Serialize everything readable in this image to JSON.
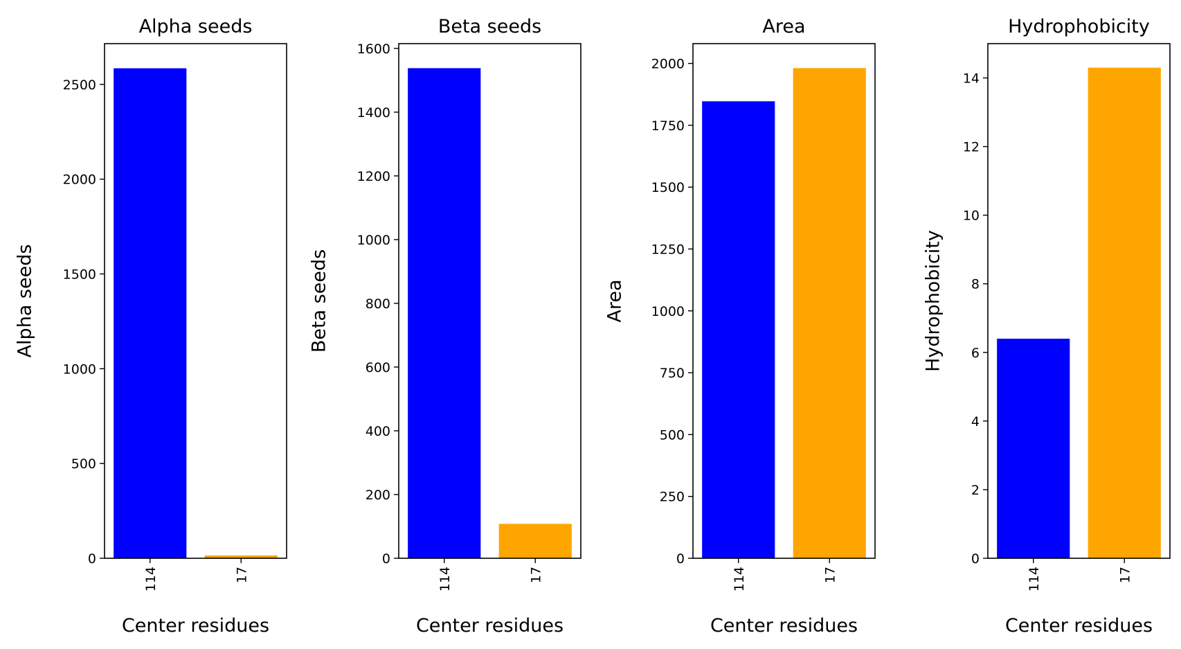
{
  "chart_data": [
    {
      "type": "bar",
      "title": "Alpha seeds",
      "xlabel": "Center residues",
      "ylabel": "Alpha seeds",
      "categories": [
        "114",
        "17"
      ],
      "values": [
        2585,
        15
      ],
      "bar_colors": [
        "#0000ff",
        "#ffa500"
      ],
      "ylim": [
        0,
        2715
      ],
      "yticks": [
        0,
        500,
        1000,
        1500,
        2000,
        2500
      ],
      "grid": false
    },
    {
      "type": "bar",
      "title": "Beta seeds",
      "xlabel": "Center residues",
      "ylabel": "Beta seeds",
      "categories": [
        "114",
        "17"
      ],
      "values": [
        1538,
        108
      ],
      "bar_colors": [
        "#0000ff",
        "#ffa500"
      ],
      "ylim": [
        0,
        1615
      ],
      "yticks": [
        0,
        200,
        400,
        600,
        800,
        1000,
        1200,
        1400,
        1600
      ],
      "grid": false
    },
    {
      "type": "bar",
      "title": "Area",
      "xlabel": "Center residues",
      "ylabel": "Area",
      "categories": [
        "114",
        "17"
      ],
      "values": [
        1847,
        1981
      ],
      "bar_colors": [
        "#0000ff",
        "#ffa500"
      ],
      "ylim": [
        0,
        2080
      ],
      "yticks": [
        0,
        250,
        500,
        750,
        1000,
        1250,
        1500,
        1750,
        2000
      ],
      "grid": false
    },
    {
      "type": "bar",
      "title": "Hydrophobicity",
      "xlabel": "Center residues",
      "ylabel": "Hydrophobicity",
      "categories": [
        "114",
        "17"
      ],
      "values": [
        6.4,
        14.3
      ],
      "bar_colors": [
        "#0000ff",
        "#ffa500"
      ],
      "ylim": [
        0,
        15.0
      ],
      "yticks": [
        0,
        2,
        4,
        6,
        8,
        10,
        12,
        14
      ],
      "grid": false
    }
  ]
}
